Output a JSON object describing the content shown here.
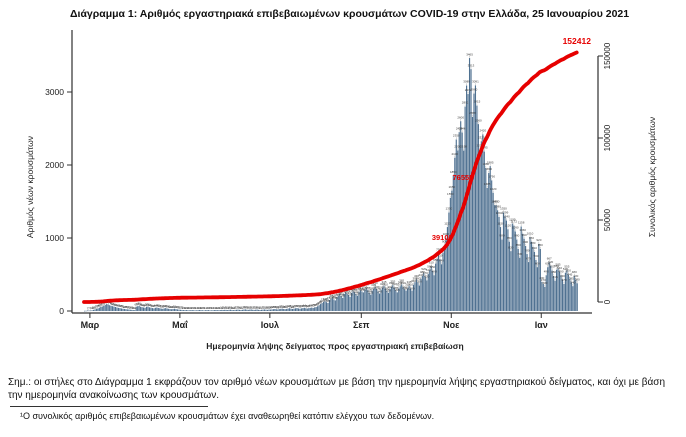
{
  "title": "Διάγραμμα 1: Αριθμός εργαστηριακά επιβεβαιωμένων κρουσμάτων COVID-19 στην Ελλάδα, 25 Ιανουαρίου 2021",
  "notes": {
    "main": "Σημ.: οι στήλες στο Διάγραμμα 1 εκφράζουν τον αριθμό νέων κρουσμάτων με βάση την ημερομηνία λήψης εργαστηριακού δείγματος, και όχι με βάση την ημερομηνία ανακοίνωσης των κρουσμάτων.",
    "footnote": "¹Ο συνολικός αριθμός επιβεβαιωμένων κρουσμάτων έχει αναθεωρηθεί κατόπιν ελέγχου των δεδομένων."
  },
  "colors": {
    "bar": "#4f7191",
    "line": "#e60000",
    "annotation": "#e60000",
    "axis": "#303030",
    "tick_text": "#222222",
    "bar_label": "#3a3a3a"
  },
  "chart_data": {
    "type": "bar+line",
    "title": "",
    "xlabel": "Ημερομηνία λήψης δείγματος προς εργαστηριακή επιβεβαίωση",
    "left_axis": {
      "label": "Αριθμός νέων κρουσμάτων",
      "ticks": [
        0,
        1000,
        2000,
        3000
      ],
      "max": 3800
    },
    "right_axis": {
      "label": "Συνολικός αριθμός κρουσμάτων",
      "ticks": [
        0,
        50000,
        100000,
        150000
      ],
      "max": 160000
    },
    "x_start_date": "2020-02-26",
    "x_end_date": "2021-01-25",
    "month_ticks": [
      {
        "label": "Μαρ",
        "day": 4
      },
      {
        "label": "Μαΐ",
        "day": 65
      },
      {
        "label": "Ιουλ",
        "day": 126
      },
      {
        "label": "Σεπ",
        "day": 188
      },
      {
        "label": "Νοε",
        "day": 249
      },
      {
        "label": "Ιαν",
        "day": 310
      }
    ],
    "daily_new_cases": [
      3,
      4,
      7,
      7,
      7,
      10,
      16,
      21,
      31,
      35,
      46,
      57,
      62,
      71,
      83,
      95,
      90,
      79,
      71,
      66,
      60,
      55,
      48,
      43,
      40,
      35,
      31,
      28,
      25,
      22,
      20,
      18,
      16,
      14,
      12,
      60,
      65,
      70,
      58,
      52,
      48,
      44,
      56,
      62,
      50,
      46,
      40,
      36,
      44,
      48,
      42,
      38,
      33,
      30,
      36,
      40,
      34,
      30,
      26,
      24,
      28,
      31,
      26,
      22,
      19,
      17,
      15,
      13,
      12,
      14,
      11,
      10,
      12,
      13,
      11,
      9,
      10,
      12,
      14,
      12,
      10,
      9,
      11,
      13,
      12,
      10,
      9,
      11,
      13,
      14,
      12,
      11,
      13,
      15,
      14,
      16,
      15,
      13,
      16,
      18,
      14,
      12,
      15,
      17,
      19,
      16,
      14,
      17,
      20,
      22,
      18,
      16,
      19,
      21,
      17,
      15,
      18,
      20,
      16,
      14,
      17,
      19,
      21,
      18,
      16,
      20,
      20,
      22,
      25,
      28,
      24,
      21,
      26,
      30,
      33,
      28,
      25,
      29,
      34,
      38,
      32,
      28,
      33,
      37,
      41,
      35,
      31,
      36,
      40,
      44,
      38,
      34,
      39,
      43,
      47,
      42,
      50,
      55,
      65,
      80,
      95,
      110,
      124,
      135,
      121,
      110,
      150,
      170,
      185,
      160,
      145,
      190,
      210,
      230,
      204,
      180,
      235,
      255,
      240,
      217,
      195,
      250,
      270,
      258,
      232,
      210,
      265,
      284,
      270,
      255,
      290,
      310,
      285,
      250,
      225,
      280,
      305,
      330,
      300,
      270,
      240,
      295,
      320,
      345,
      310,
      280,
      250,
      300,
      330,
      355,
      320,
      285,
      255,
      310,
      340,
      365,
      330,
      295,
      280,
      310,
      345,
      310,
      280,
      360,
      395,
      430,
      390,
      350,
      440,
      480,
      520,
      470,
      420,
      510,
      560,
      610,
      550,
      490,
      650,
      720,
      790,
      710,
      640,
      800,
      900,
      1000,
      1150,
      1350,
      1550,
      1650,
      1850,
      2100,
      2350,
      2200,
      2450,
      2600,
      2446,
      2198,
      2801,
      3089,
      2972,
      3465,
      3313,
      2658,
      2980,
      3091,
      2815,
      2560,
      2212,
      2325,
      2420,
      2185,
      1960,
      1685,
      1890,
      1985,
      1790,
      1620,
      1450,
      1450,
      1380,
      1290,
      1150,
      980,
      1350,
      1299,
      1240,
      1120,
      950,
      820,
      1199,
      1172,
      1090,
      980,
      850,
      730,
      1158,
      1060,
      990,
      890,
      780,
      670,
      1010,
      950,
      880,
      810,
      700,
      600,
      920,
      850,
      400,
      370,
      330,
      490,
      600,
      667,
      620,
      555,
      480,
      415,
      565,
      585,
      540,
      490,
      430,
      370,
      525,
      555,
      500,
      445,
      395,
      340,
      480,
      430,
      380
    ],
    "cumulative_line_annotations": [
      {
        "text": "39103",
        "day": 249
      },
      {
        "text": "76555",
        "day": 263
      },
      {
        "text": "152412",
        "day": 330,
        "final": true
      }
    ],
    "final_cumulative_label": "152412"
  }
}
